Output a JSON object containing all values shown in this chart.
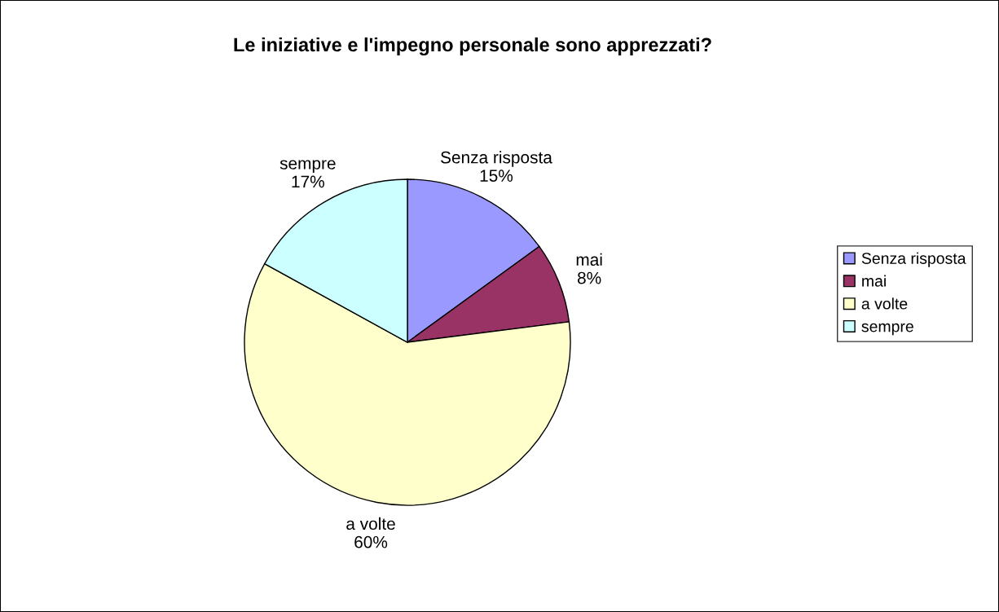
{
  "chart_data": {
    "type": "pie",
    "title": "Le iniziative e l'impegno personale sono apprezzati?",
    "categories": [
      "Senza risposta",
      "mai",
      "a volte",
      "sempre"
    ],
    "values": [
      15,
      8,
      60,
      17
    ],
    "value_labels": [
      "15%",
      "8%",
      "60%",
      "17%"
    ],
    "colors": [
      "#9999ff",
      "#993366",
      "#ffffcc",
      "#ccffff"
    ],
    "legend": "right"
  }
}
